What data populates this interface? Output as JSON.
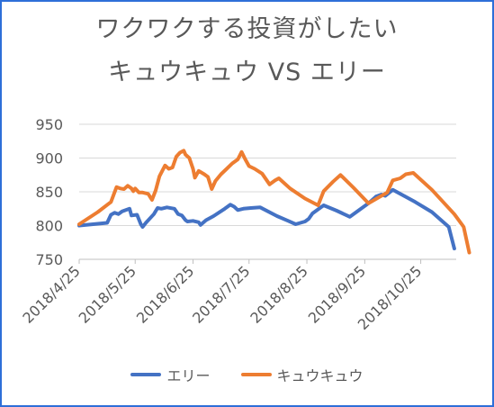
{
  "chart_data": {
    "type": "line",
    "title_line1": "ワクワクする投資がしたい",
    "title_line2": "キュウキュウ VS エリー",
    "xlabel": "",
    "ylabel": "",
    "ylim": [
      750,
      950
    ],
    "yticks": [
      "950",
      "900",
      "850",
      "800",
      "750"
    ],
    "xticks": [
      "2018/4/25",
      "2018/5/25",
      "2018/6/25",
      "2018/7/25",
      "2018/8/25",
      "2018/9/25",
      "2018/10/25"
    ],
    "grid": true,
    "legend_position": "bottom",
    "series": [
      {
        "name": "エリー",
        "color": "#4472C4",
        "points": [
          [
            "2018-04-25",
            800
          ],
          [
            "2018-05-10",
            804
          ],
          [
            "2018-05-12",
            816
          ],
          [
            "2018-05-14",
            819
          ],
          [
            "2018-05-16",
            817
          ],
          [
            "2018-05-18",
            821
          ],
          [
            "2018-05-22",
            825
          ],
          [
            "2018-05-23",
            815
          ],
          [
            "2018-05-26",
            816
          ],
          [
            "2018-05-28",
            802
          ],
          [
            "2018-05-29",
            798
          ],
          [
            "2018-05-31",
            805
          ],
          [
            "2018-06-04",
            817
          ],
          [
            "2018-06-06",
            826
          ],
          [
            "2018-06-08",
            825
          ],
          [
            "2018-06-11",
            827
          ],
          [
            "2018-06-15",
            825
          ],
          [
            "2018-06-17",
            817
          ],
          [
            "2018-06-19",
            815
          ],
          [
            "2018-06-21",
            808
          ],
          [
            "2018-06-22",
            806
          ],
          [
            "2018-06-25",
            807
          ],
          [
            "2018-06-28",
            805
          ],
          [
            "2018-06-29",
            801
          ],
          [
            "2018-07-02",
            808
          ],
          [
            "2018-07-06",
            814
          ],
          [
            "2018-07-12",
            825
          ],
          [
            "2018-07-15",
            831
          ],
          [
            "2018-07-17",
            828
          ],
          [
            "2018-07-19",
            823
          ],
          [
            "2018-07-22",
            825
          ],
          [
            "2018-07-26",
            826
          ],
          [
            "2018-07-31",
            827
          ],
          [
            "2018-08-09",
            814
          ],
          [
            "2018-08-15",
            807
          ],
          [
            "2018-08-19",
            802
          ],
          [
            "2018-08-24",
            806
          ],
          [
            "2018-08-26",
            810
          ],
          [
            "2018-08-28",
            818
          ],
          [
            "2018-09-03",
            830
          ],
          [
            "2018-09-10",
            822
          ],
          [
            "2018-09-17",
            813
          ],
          [
            "2018-09-27",
            833
          ],
          [
            "2018-10-01",
            843
          ],
          [
            "2018-10-04",
            846
          ],
          [
            "2018-10-06",
            844
          ],
          [
            "2018-10-10",
            853
          ],
          [
            "2018-10-22",
            835
          ],
          [
            "2018-10-31",
            820
          ],
          [
            "2018-11-09",
            798
          ],
          [
            "2018-11-12",
            766
          ]
        ]
      },
      {
        "name": "キュウキュウ",
        "color": "#ED7D31",
        "points": [
          [
            "2018-04-25",
            802
          ],
          [
            "2018-05-05",
            820
          ],
          [
            "2018-05-12",
            835
          ],
          [
            "2018-05-15",
            857
          ],
          [
            "2018-05-17",
            855
          ],
          [
            "2018-05-19",
            854
          ],
          [
            "2018-05-21",
            859
          ],
          [
            "2018-05-23",
            855
          ],
          [
            "2018-05-24",
            851
          ],
          [
            "2018-05-25",
            855
          ],
          [
            "2018-05-27",
            849
          ],
          [
            "2018-05-29",
            849
          ],
          [
            "2018-06-01",
            847
          ],
          [
            "2018-06-03",
            838
          ],
          [
            "2018-06-05",
            852
          ],
          [
            "2018-06-07",
            873
          ],
          [
            "2018-06-10",
            889
          ],
          [
            "2018-06-12",
            884
          ],
          [
            "2018-06-14",
            886
          ],
          [
            "2018-06-16",
            902
          ],
          [
            "2018-06-18",
            908
          ],
          [
            "2018-06-20",
            911
          ],
          [
            "2018-06-21",
            905
          ],
          [
            "2018-06-23",
            900
          ],
          [
            "2018-06-25",
            884
          ],
          [
            "2018-06-26",
            871
          ],
          [
            "2018-06-28",
            881
          ],
          [
            "2018-07-01",
            876
          ],
          [
            "2018-07-03",
            872
          ],
          [
            "2018-07-05",
            854
          ],
          [
            "2018-07-07",
            866
          ],
          [
            "2018-07-10",
            876
          ],
          [
            "2018-07-13",
            884
          ],
          [
            "2018-07-16",
            892
          ],
          [
            "2018-07-19",
            898
          ],
          [
            "2018-07-21",
            909
          ],
          [
            "2018-07-23",
            898
          ],
          [
            "2018-07-25",
            888
          ],
          [
            "2018-07-28",
            884
          ],
          [
            "2018-08-01",
            877
          ],
          [
            "2018-08-05",
            861
          ],
          [
            "2018-08-08",
            867
          ],
          [
            "2018-08-10",
            870
          ],
          [
            "2018-08-16",
            855
          ],
          [
            "2018-08-24",
            840
          ],
          [
            "2018-08-31",
            830
          ],
          [
            "2018-09-03",
            851
          ],
          [
            "2018-09-08",
            865
          ],
          [
            "2018-09-12",
            875
          ],
          [
            "2018-09-19",
            856
          ],
          [
            "2018-09-27",
            833
          ],
          [
            "2018-10-07",
            849
          ],
          [
            "2018-10-10",
            867
          ],
          [
            "2018-10-14",
            870
          ],
          [
            "2018-10-17",
            876
          ],
          [
            "2018-10-21",
            878
          ],
          [
            "2018-10-31",
            853
          ],
          [
            "2018-11-12",
            817
          ],
          [
            "2018-11-17",
            798
          ],
          [
            "2018-11-20",
            760
          ]
        ]
      }
    ]
  }
}
